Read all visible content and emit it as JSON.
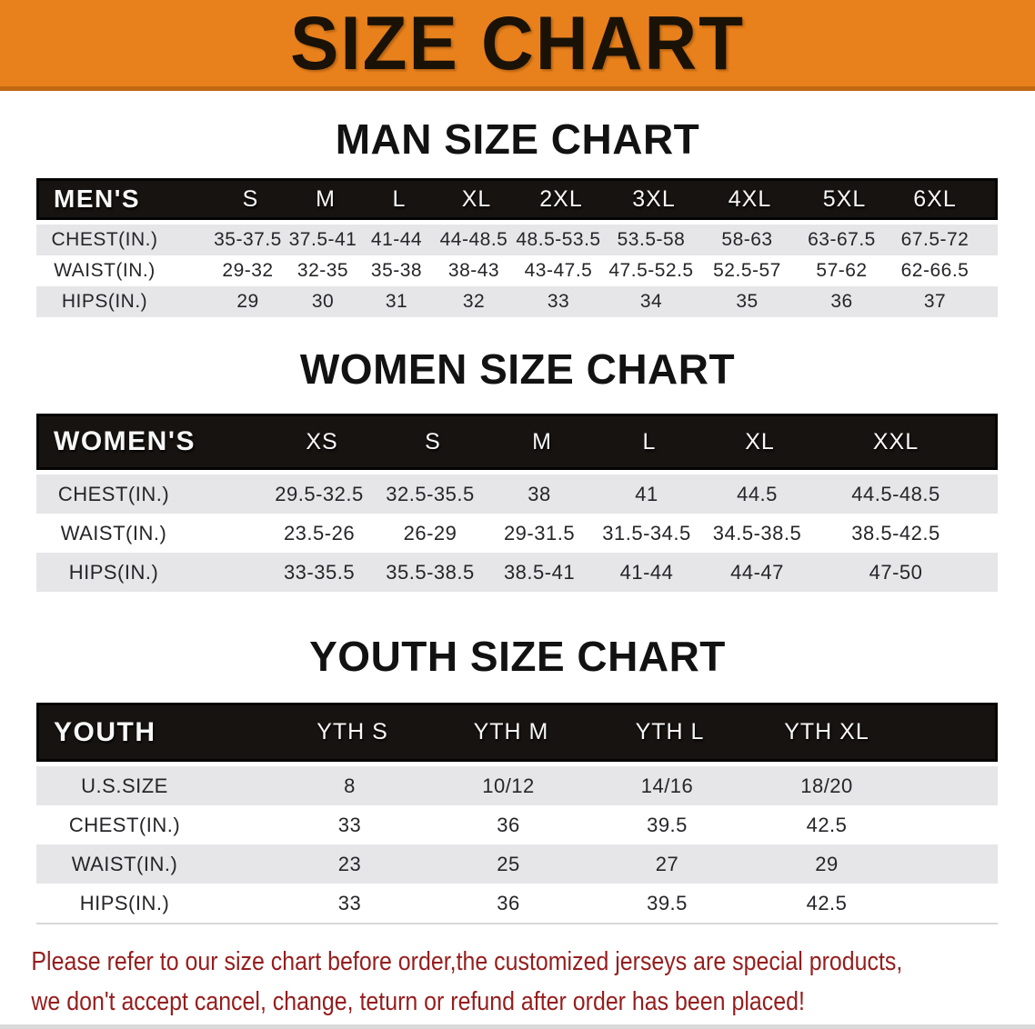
{
  "banner": {
    "title": "SIZE CHART",
    "bg_color": "#E8811C",
    "text_color": "#1A1206"
  },
  "sections": [
    {
      "id": "men",
      "heading": "MAN SIZE CHART",
      "table": {
        "header": [
          "MEN'S",
          "S",
          "M",
          "L",
          "XL",
          "2XL",
          "3XL",
          "4XL",
          "5XL",
          "6XL"
        ],
        "rows": [
          [
            "CHEST(IN.)",
            "35-37.5",
            "37.5-41",
            "41-44",
            "44-48.5",
            "48.5-53.5",
            "53.5-58",
            "58-63",
            "63-67.5",
            "67.5-72"
          ],
          [
            "WAIST(IN.)",
            "29-32",
            "32-35",
            "35-38",
            "38-43",
            "43-47.5",
            "47.5-52.5",
            "52.5-57",
            "57-62",
            "62-66.5"
          ],
          [
            "HIPS(IN.)",
            "29",
            "30",
            "31",
            "32",
            "33",
            "34",
            "35",
            "36",
            "37"
          ]
        ]
      }
    },
    {
      "id": "women",
      "heading": "WOMEN SIZE CHART",
      "table": {
        "header": [
          "WOMEN'S",
          "XS",
          "S",
          "M",
          "L",
          "XL",
          "XXL"
        ],
        "rows": [
          [
            "CHEST(IN.)",
            "29.5-32.5",
            "32.5-35.5",
            "38",
            "41",
            "44.5",
            "44.5-48.5"
          ],
          [
            "WAIST(IN.)",
            "23.5-26",
            "26-29",
            "29-31.5",
            "31.5-34.5",
            "34.5-38.5",
            "38.5-42.5"
          ],
          [
            "HIPS(IN.)",
            "33-35.5",
            "35.5-38.5",
            "38.5-41",
            "41-44",
            "44-47",
            "47-50"
          ]
        ]
      }
    },
    {
      "id": "youth",
      "heading": "YOUTH SIZE CHART",
      "table": {
        "header": [
          "YOUTH",
          "YTH S",
          "YTH M",
          "YTH L",
          "YTH XL"
        ],
        "rows": [
          [
            "U.S.SIZE",
            "8",
            "10/12",
            "14/16",
            "18/20"
          ],
          [
            "CHEST(IN.)",
            "33",
            "36",
            "39.5",
            "42.5"
          ],
          [
            "WAIST(IN.)",
            "23",
            "25",
            "27",
            "29"
          ],
          [
            "HIPS(IN.)",
            "33",
            "36",
            "39.5",
            "42.5"
          ]
        ]
      }
    }
  ],
  "disclaimer": {
    "line1": "Please refer to our size chart before order,the customized jerseys are special products,",
    "line2": "we don't accept cancel, change, teturn or refund after order has been placed!",
    "text_color": "#961D1D"
  },
  "colors": {
    "accent_orange": "#E8811C",
    "banner_edge": "#C06712",
    "table_header_bg": "#171310",
    "row_gray": "#E6E6E8",
    "row_white": "#FFFFFF",
    "value_text": "#26262A"
  }
}
